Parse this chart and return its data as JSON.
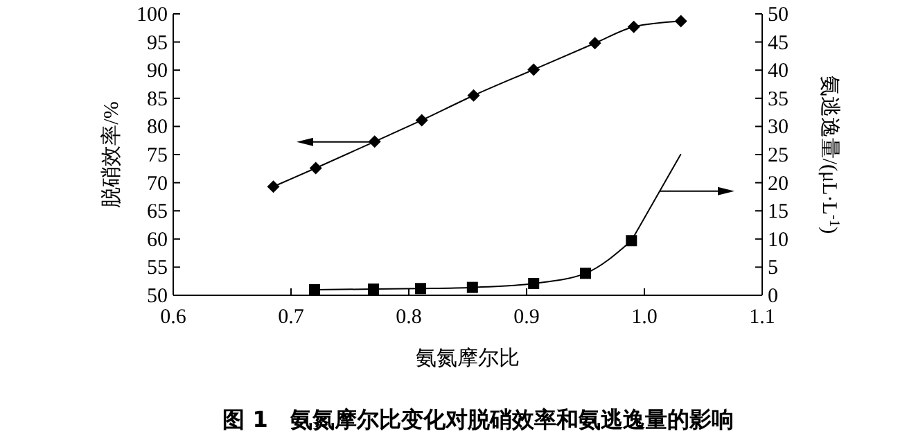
{
  "chart_data": {
    "type": "line",
    "title": "图 1　氨氮摩尔比变化对脱硝效率和氨逃逸量的影响",
    "xlabel": "氨氮摩尔比",
    "ylabel": "脱硝效率/%",
    "y2label": "氨逃逸量/(μL·L$^{-1}$)",
    "xlim": [
      0.6,
      1.1
    ],
    "xticks": [
      0.6,
      0.7,
      0.8,
      0.9,
      {
        "value": 1,
        "label": "1.0"
      },
      1.1
    ],
    "ylim": [
      50,
      100
    ],
    "yticks": [
      50,
      55,
      60,
      65,
      70,
      75,
      80,
      85,
      90,
      95,
      100
    ],
    "y2lim": [
      0,
      50
    ],
    "y2ticks": [
      0,
      5,
      10,
      15,
      20,
      25,
      30,
      35,
      40,
      45,
      50
    ],
    "grid": false,
    "line_style": "solid",
    "series": [
      {
        "color": "#000000",
        "marker": "diamond",
        "x": [
          0.685,
          0.721,
          0.771,
          0.811,
          0.855,
          0.906,
          0.958,
          0.991,
          1.031
        ],
        "values": [
          69.3,
          72.6,
          77.3,
          81.1,
          85.5,
          90.1,
          94.8,
          97.7,
          98.7
        ]
      },
      {
        "color": "#000000",
        "marker": "square",
        "axis": "y2",
        "x": [
          0.72,
          0.77,
          0.81,
          0.854,
          0.906,
          0.95,
          0.989
        ],
        "values": [
          1.0,
          1.1,
          1.2,
          1.4,
          2.1,
          3.9,
          9.7
        ]
      },
      {
        "color": "#000000",
        "marker": "none",
        "axis": "y2",
        "x": [
          0.989,
          1.031
        ],
        "values": [
          9.7,
          25.1
        ]
      }
    ]
  }
}
